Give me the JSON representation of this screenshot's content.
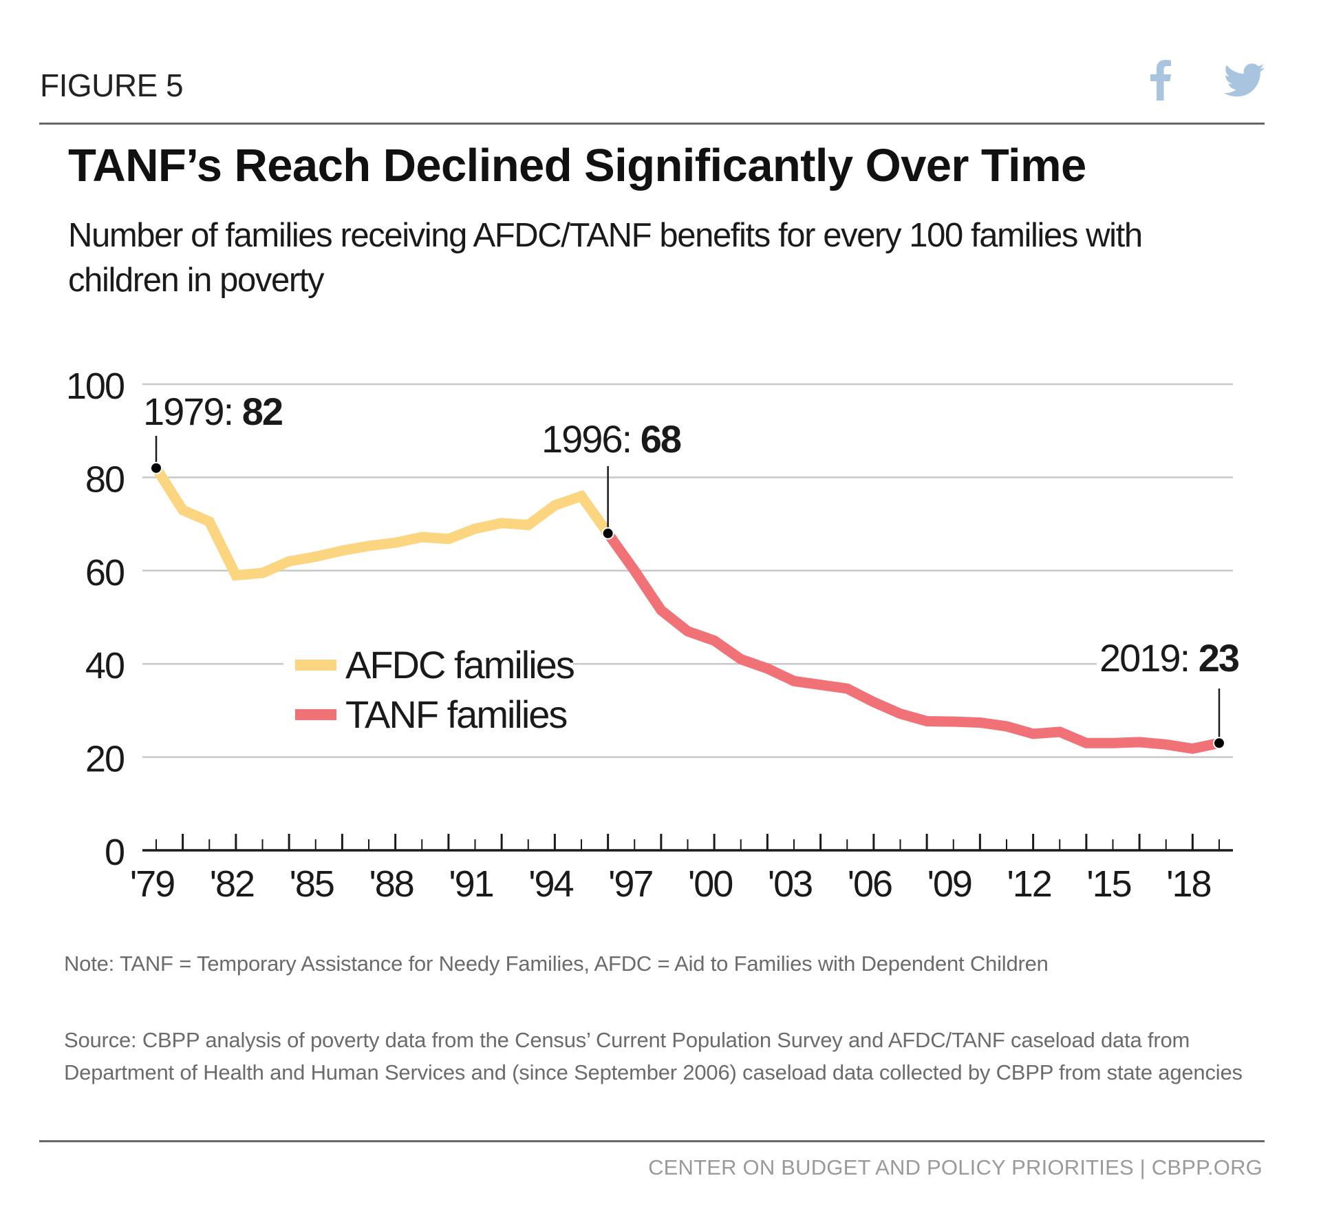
{
  "header": {
    "figure_label": "FIGURE 5",
    "share": [
      {
        "name": "facebook",
        "icon": "facebook-icon"
      },
      {
        "name": "twitter",
        "icon": "twitter-icon"
      }
    ],
    "icon_color": "#a9c4de"
  },
  "title": "TANF’s Reach Declined Significantly Over Time",
  "subtitle": "Number of families receiving AFDC/TANF benefits for every 100 families with children in poverty",
  "chart_data": {
    "type": "line",
    "title": "TANF’s Reach Declined Significantly Over Time",
    "subtitle": "Number of families receiving AFDC/TANF benefits for every 100 families with children in poverty",
    "xlabel": "",
    "ylabel": "",
    "ylim": [
      0,
      100
    ],
    "xlim": [
      1979,
      2019
    ],
    "yticks": [
      0,
      20,
      40,
      60,
      80,
      100
    ],
    "ytick_labels": [
      "0",
      "20",
      "40",
      "60",
      "80",
      "100"
    ],
    "xticks": [
      1979,
      1982,
      1985,
      1988,
      1991,
      1994,
      1997,
      2000,
      2003,
      2006,
      2009,
      2012,
      2015,
      2018
    ],
    "xtick_labels": [
      "'79",
      "'82",
      "'85",
      "'88",
      "'91",
      "'94",
      "'97",
      "'00",
      "'03",
      "'06",
      "'09",
      "'12",
      "'15",
      "'18"
    ],
    "minor_ticks_every_year": true,
    "grid": true,
    "legend": {
      "placement": "center-left",
      "entries": [
        {
          "label": "AFDC families",
          "color": "#fcd581"
        },
        {
          "label": "TANF families",
          "color": "#f07277"
        }
      ]
    },
    "series": [
      {
        "name": "AFDC families",
        "color": "#fcd581",
        "x": [
          1979,
          1980,
          1981,
          1982,
          1983,
          1984,
          1985,
          1986,
          1987,
          1988,
          1989,
          1990,
          1991,
          1992,
          1993,
          1994,
          1995,
          1996
        ],
        "values": [
          82,
          73,
          70.5,
          59,
          59.5,
          62,
          63,
          64.3,
          65.3,
          66,
          67.2,
          66.8,
          69,
          70.2,
          69.8,
          74,
          76,
          68
        ]
      },
      {
        "name": "TANF families",
        "color": "#f07277",
        "x": [
          1996,
          1997,
          1998,
          1999,
          2000,
          2001,
          2002,
          2003,
          2004,
          2005,
          2006,
          2007,
          2008,
          2009,
          2010,
          2011,
          2012,
          2013,
          2014,
          2015,
          2016,
          2017,
          2018,
          2019
        ],
        "values": [
          68,
          60,
          51.5,
          47,
          45,
          41,
          39,
          36.3,
          35.5,
          34.7,
          31.8,
          29.3,
          27.7,
          27.6,
          27.4,
          26.6,
          25,
          25.4,
          23,
          23,
          23.2,
          22.7,
          21.8,
          23
        ]
      }
    ],
    "annotations": [
      {
        "year": 1979,
        "value": 82,
        "label_year": "1979:",
        "label_value": "82",
        "position": "above"
      },
      {
        "year": 1996,
        "value": 68,
        "label_year": "1996:",
        "label_value": "68",
        "position": "above"
      },
      {
        "year": 2019,
        "value": 23,
        "label_year": "2019:",
        "label_value": "23",
        "position": "above"
      }
    ]
  },
  "footer": {
    "note": "Note: TANF = Temporary Assistance for Needy Families, AFDC = Aid to Families with Dependent Children",
    "source": "Source: CBPP analysis of poverty data from the Census’ Current Population Survey and AFDC/TANF caseload data from Department of Health and Human Services and (since September 2006) caseload data collected by CBPP from state agencies",
    "credit": "CENTER ON BUDGET AND POLICY PRIORITIES | CBPP.ORG"
  }
}
